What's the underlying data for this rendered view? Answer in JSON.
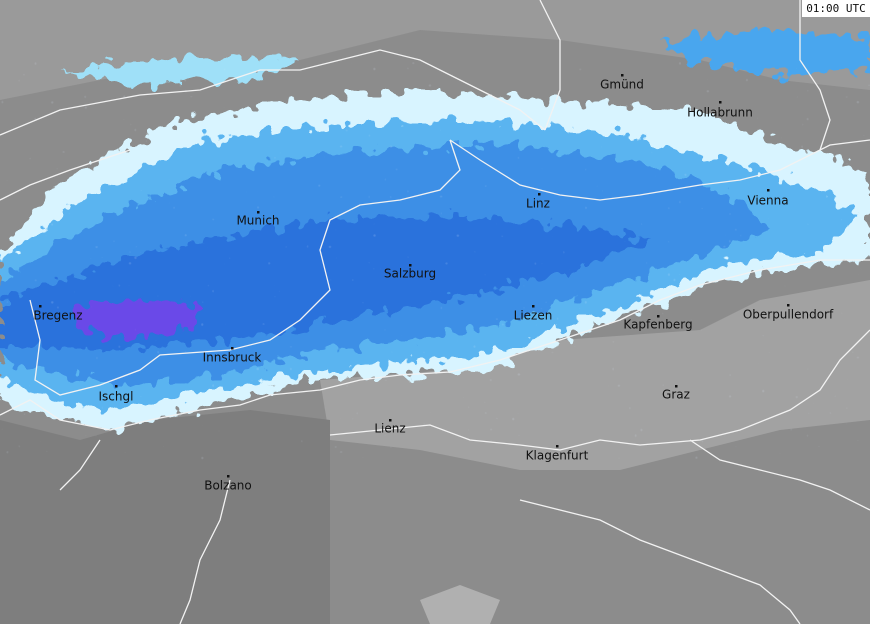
{
  "timestamp": "01:00 UTC",
  "cities": [
    {
      "label": "Gmünd"
    },
    {
      "label": "Hollabrunn"
    },
    {
      "label": "Linz"
    },
    {
      "label": "Vienna"
    },
    {
      "label": "Munich"
    },
    {
      "label": "Salzburg"
    },
    {
      "label": "Bregenz"
    },
    {
      "label": "Liezen"
    },
    {
      "label": "Kapfenberg"
    },
    {
      "label": "Oberpullendorf"
    },
    {
      "label": "Innsbruck"
    },
    {
      "label": "Ischgl"
    },
    {
      "label": "Graz"
    },
    {
      "label": "Lienz"
    },
    {
      "label": "Klagenfurt"
    },
    {
      "label": "Bolzano"
    }
  ]
}
